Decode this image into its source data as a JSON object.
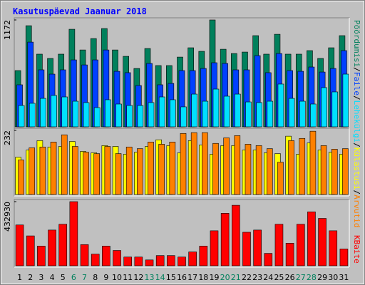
{
  "chart_data": [
    {
      "type": "bar",
      "title": "Kasutuspäevad Jaanuar 2018",
      "legend_separator": "/",
      "ylim": [
        0,
        1172
      ],
      "yticks": [
        1172
      ],
      "series": [
        {
          "name": "Pöördumisi",
          "color": "#00805c",
          "values": [
            617,
            1109,
            797,
            750,
            797,
            1070,
            843,
            968,
            1078,
            843,
            773,
            640,
            859,
            672,
            672,
            765,
            867,
            828,
            1172,
            851,
            804,
            820,
            1000,
            797,
            1015,
            797,
            797,
            836,
            750,
            867,
            1000
          ]
        },
        {
          "name": "Faile",
          "color": "#0040ff",
          "values": [
            461,
            929,
            625,
            578,
            625,
            734,
            679,
            734,
            843,
            609,
            594,
            453,
            695,
            461,
            476,
            617,
            617,
            640,
            703,
            695,
            625,
            625,
            781,
            594,
            804,
            617,
            609,
            656,
            601,
            640,
            836
          ]
        },
        {
          "name": "Lehekülgi",
          "color": "#00e0ff",
          "values": [
            234,
            258,
            312,
            344,
            328,
            281,
            266,
            211,
            297,
            250,
            234,
            234,
            266,
            328,
            297,
            219,
            359,
            281,
            414,
            336,
            359,
            273,
            266,
            281,
            469,
            312,
            281,
            250,
            430,
            383,
            578
          ]
        }
      ]
    },
    {
      "type": "bar",
      "ylim": [
        0,
        232
      ],
      "yticks": [
        232
      ],
      "series": [
        {
          "name": "Külastusi",
          "color": "#ffff00",
          "values": [
            135,
            161,
            195,
            172,
            174,
            192,
            156,
            151,
            177,
            174,
            146,
            153,
            174,
            198,
            177,
            151,
            195,
            179,
            146,
            177,
            177,
            161,
            161,
            151,
            148,
            211,
            146,
            187,
            161,
            153,
            146
          ]
        },
        {
          "name": "Arvutid",
          "color": "#ff8000",
          "values": [
            125,
            169,
            172,
            190,
            216,
            174,
            153,
            148,
            174,
            148,
            172,
            166,
            190,
            182,
            190,
            221,
            224,
            224,
            185,
            205,
            213,
            182,
            177,
            166,
            117,
            195,
            203,
            229,
            177,
            164,
            166
          ]
        }
      ]
    },
    {
      "type": "bar",
      "ylim": [
        0,
        432930
      ],
      "yticks": [
        432930
      ],
      "categories": [
        "1",
        "2",
        "3",
        "4",
        "5",
        "6",
        "7",
        "8",
        "9",
        "10",
        "11",
        "12",
        "13",
        "14",
        "15",
        "16",
        "17",
        "18",
        "19",
        "20",
        "21",
        "22",
        "23",
        "24",
        "25",
        "26",
        "27",
        "28",
        "29",
        "30",
        "31"
      ],
      "category_colors": [
        "#000000",
        "#000000",
        "#000000",
        "#000000",
        "#000000",
        "#00805c",
        "#00805c",
        "#000000",
        "#000000",
        "#000000",
        "#000000",
        "#000000",
        "#00805c",
        "#00805c",
        "#000000",
        "#000000",
        "#000000",
        "#000000",
        "#000000",
        "#00805c",
        "#00805c",
        "#000000",
        "#000000",
        "#000000",
        "#000000",
        "#000000",
        "#00805c",
        "#00805c",
        "#000000",
        "#000000",
        "#000000"
      ],
      "series": [
        {
          "name": "KBaite",
          "color": "#ff0000",
          "values": [
            275500,
            201700,
            132800,
            241100,
            280400,
            432930,
            142700,
            78700,
            132800,
            103300,
            59000,
            59000,
            39400,
            68900,
            68900,
            59000,
            93500,
            132800,
            236200,
            354200,
            408400,
            226300,
            241100,
            83600,
            280400,
            152500,
            280400,
            364100,
            319800,
            236200,
            113200
          ]
        }
      ]
    }
  ]
}
